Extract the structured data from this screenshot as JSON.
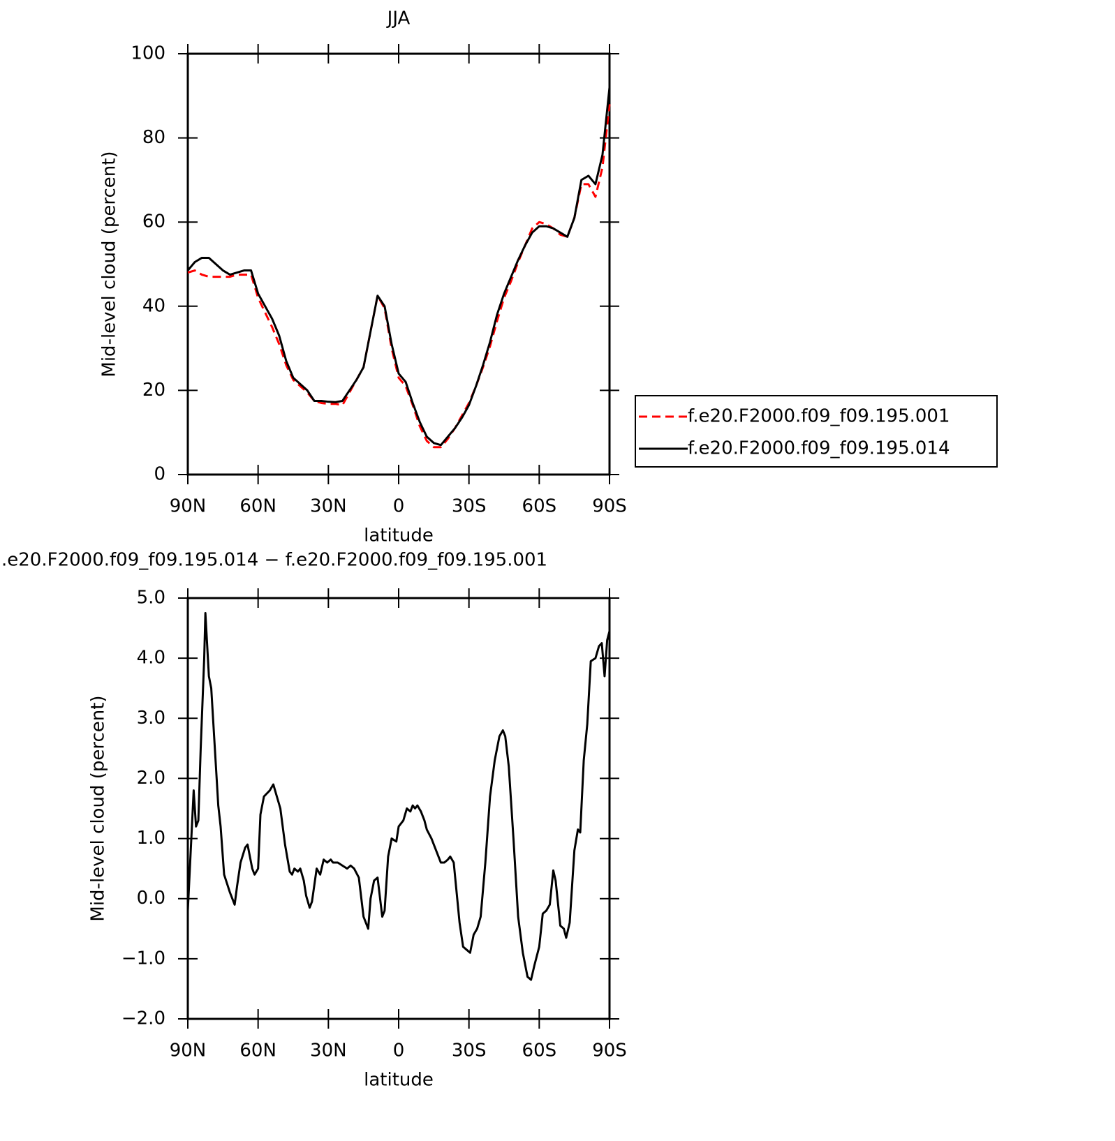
{
  "chart_data": [
    {
      "type": "line",
      "title": "JJA",
      "xlabel": "latitude",
      "ylabel": "Mid-level cloud (percent)",
      "x": [
        90,
        87,
        84,
        81,
        78,
        75,
        72,
        69,
        66,
        63,
        60,
        57,
        54,
        51,
        48,
        45,
        42,
        39,
        36,
        33,
        30,
        27,
        24,
        21,
        18,
        15,
        12,
        9,
        6,
        3,
        0,
        -3,
        -6,
        -9,
        -12,
        -15,
        -18,
        -21,
        -24,
        -27,
        -30,
        -33,
        -36,
        -39,
        -42,
        -45,
        -48,
        -51,
        -54,
        -57,
        -60,
        -63,
        -66,
        -69,
        -72,
        -75,
        -78,
        -81,
        -84,
        -87,
        -90
      ],
      "series": [
        {
          "name": "f.e20.F2000.f09_f09.195.001",
          "color": "#ff0000",
          "dash": true,
          "values": [
            48,
            48.5,
            47.5,
            47,
            47,
            47,
            47,
            47.5,
            47.5,
            47.5,
            42,
            38.5,
            35,
            31,
            26,
            22.5,
            21,
            19.5,
            17.5,
            17,
            16.8,
            16.8,
            16.5,
            19.5,
            22.5,
            25.5,
            34,
            42.5,
            39.5,
            30,
            23,
            21,
            16.5,
            11.5,
            8,
            6.5,
            6.5,
            8.5,
            11,
            14,
            17,
            21,
            25.5,
            30.5,
            36.5,
            42,
            46,
            50.5,
            54.5,
            58.5,
            60,
            59.5,
            58.5,
            57,
            56.5,
            61,
            69,
            69,
            66,
            73,
            88
          ]
        },
        {
          "name": "f.e20.F2000.f09_f09.195.014",
          "color": "#000000",
          "dash": false,
          "values": [
            48.5,
            50.5,
            51.5,
            51.5,
            50,
            48.5,
            47.5,
            48,
            48.5,
            48.5,
            43,
            40,
            37,
            33,
            27,
            23,
            21.5,
            20,
            17.5,
            17.5,
            17.3,
            17.2,
            17.5,
            20,
            22.5,
            25.5,
            34,
            42.5,
            40,
            31,
            24,
            22,
            17,
            12.5,
            9,
            7.5,
            7,
            9,
            11,
            13.5,
            16.5,
            21,
            26,
            31.5,
            38,
            43,
            47,
            51,
            54.5,
            57.5,
            59,
            59,
            58.5,
            57.5,
            56.5,
            61,
            70,
            71,
            69,
            76,
            92
          ]
        }
      ],
      "xlim": [
        90,
        -90
      ],
      "xticks": [
        {
          "value": 90,
          "label": "90N"
        },
        {
          "value": 60,
          "label": "60N"
        },
        {
          "value": 30,
          "label": "30N"
        },
        0,
        {
          "value": -30,
          "label": "30S"
        },
        {
          "value": -60,
          "label": "60S"
        },
        {
          "value": -90,
          "label": "90S"
        }
      ],
      "ylim": [
        0,
        100
      ],
      "yticks": [
        0,
        20,
        40,
        60,
        80,
        100
      ],
      "legend": "right"
    },
    {
      "type": "line",
      "title": ".e20.F2000.f09_f09.195.014 − f.e20.F2000.f09_f09.195.001",
      "xlabel": "latitude",
      "ylabel": "Mid-level cloud (percent)",
      "x": [
        90,
        88.5,
        87.5,
        86.5,
        85.5,
        84.5,
        83,
        82.5,
        81,
        80,
        78,
        77,
        76,
        74.5,
        72,
        70,
        69,
        67.5,
        65.5,
        64.5,
        62.5,
        61.5,
        60,
        59,
        57.5,
        55,
        53.5,
        52,
        50.5,
        48.5,
        46.5,
        45.5,
        44.5,
        43,
        42,
        40.5,
        39.5,
        38,
        37,
        35,
        33.5,
        32,
        30.5,
        29,
        28,
        26,
        24,
        22,
        20.5,
        19,
        17,
        15,
        13,
        12,
        10.5,
        9,
        7,
        6,
        4.5,
        3,
        1,
        0,
        -2,
        -3.5,
        -5,
        -6,
        -7,
        -8,
        -9.5,
        -11,
        -12,
        -14,
        -16,
        -18,
        -19.5,
        -21,
        -22,
        -23.5,
        -25,
        -26,
        -27.5,
        -29,
        -30.5,
        -32,
        -33.5,
        -35,
        -37,
        -39,
        -41,
        -43,
        -44.5,
        -45.5,
        -47,
        -49,
        -51,
        -53,
        -55,
        -56.5,
        -58,
        -60,
        -61.5,
        -63,
        -64.5,
        -66,
        -67,
        -69,
        -70.5,
        -71.5,
        -73,
        -75,
        -76.5,
        -77.5,
        -79,
        -80.5,
        -82,
        -84,
        -85.5,
        -86.7,
        -87.9,
        -89,
        -90
      ],
      "series": [
        {
          "name": null,
          "color": "#000000",
          "dash": false,
          "values": [
            -0.2,
            1.0,
            1.8,
            1.2,
            1.3,
            2.5,
            4.0,
            4.75,
            3.7,
            3.5,
            2.2,
            1.55,
            1.2,
            0.4,
            0.1,
            -0.1,
            0.2,
            0.6,
            0.85,
            0.9,
            0.5,
            0.4,
            0.5,
            1.4,
            1.7,
            1.8,
            1.9,
            1.7,
            1.5,
            0.9,
            0.45,
            0.4,
            0.5,
            0.45,
            0.5,
            0.3,
            0.05,
            -0.15,
            -0.05,
            0.5,
            0.4,
            0.65,
            0.6,
            0.65,
            0.6,
            0.6,
            0.55,
            0.5,
            0.55,
            0.5,
            0.35,
            -0.3,
            -0.5,
            0.0,
            0.3,
            0.35,
            -0.3,
            -0.2,
            0.7,
            1.0,
            0.95,
            1.2,
            1.3,
            1.5,
            1.45,
            1.55,
            1.5,
            1.55,
            1.45,
            1.3,
            1.15,
            1.0,
            0.8,
            0.6,
            0.6,
            0.65,
            0.7,
            0.6,
            0.0,
            -0.4,
            -0.8,
            -0.85,
            -0.9,
            -0.6,
            -0.5,
            -0.3,
            0.6,
            1.7,
            2.3,
            2.7,
            2.8,
            2.7,
            2.2,
            1.0,
            -0.3,
            -0.9,
            -1.3,
            -1.35,
            -1.1,
            -0.8,
            -0.25,
            -0.2,
            -0.1,
            0.47,
            0.3,
            -0.45,
            -0.5,
            -0.65,
            -0.4,
            0.8,
            1.15,
            1.1,
            2.3,
            2.9,
            3.95,
            4.0,
            4.2,
            4.25,
            3.7,
            4.3,
            4.45
          ]
        }
      ],
      "xlim": [
        90,
        -90
      ],
      "xticks": [
        {
          "value": 90,
          "label": "90N"
        },
        {
          "value": 60,
          "label": "60N"
        },
        {
          "value": 30,
          "label": "30N"
        },
        0,
        {
          "value": -30,
          "label": "30S"
        },
        {
          "value": -60,
          "label": "60S"
        },
        {
          "value": -90,
          "label": "90S"
        }
      ],
      "ylim": [
        -2,
        5
      ],
      "yticks": [
        {
          "value": -2,
          "label": "−2.0"
        },
        {
          "value": -1,
          "label": "−1.0"
        },
        {
          "value": 0,
          "label": "0.0"
        },
        {
          "value": 1,
          "label": "1.0"
        },
        {
          "value": 2,
          "label": "2.0"
        },
        {
          "value": 3,
          "label": "3.0"
        },
        {
          "value": 4,
          "label": "4.0"
        },
        {
          "value": 5,
          "label": "5.0"
        }
      ]
    }
  ]
}
